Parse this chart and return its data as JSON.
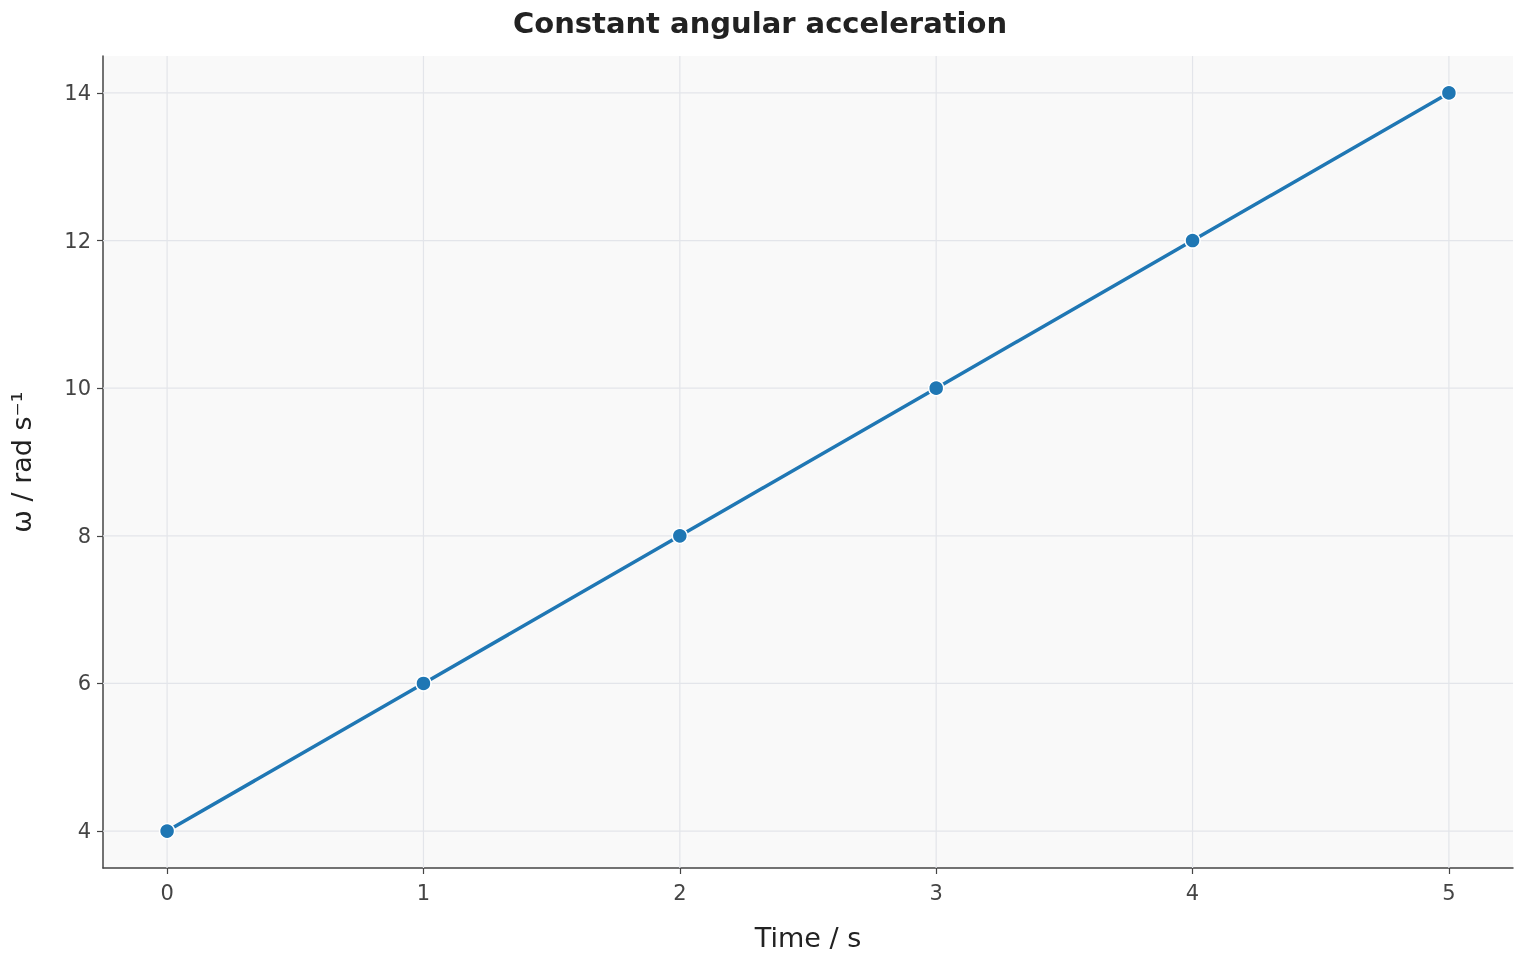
{
  "chart_data": {
    "type": "line",
    "title": "Constant angular acceleration",
    "xlabel": "Time / s",
    "ylabel": "ω / rad s⁻¹",
    "x": [
      0,
      1,
      2,
      3,
      4,
      5
    ],
    "series": [
      {
        "color": "#1f77b4",
        "values": [
          4,
          6,
          8,
          10,
          12,
          14
        ]
      }
    ],
    "xlim": [
      -0.25,
      5.25
    ],
    "xticks": [
      0,
      1,
      2,
      3,
      4,
      5
    ],
    "ylim": [
      3.5,
      14.5
    ],
    "yticks": [
      4,
      6,
      8,
      10,
      12,
      14
    ],
    "grid": true,
    "marker": "circle",
    "line_style": "solid"
  }
}
